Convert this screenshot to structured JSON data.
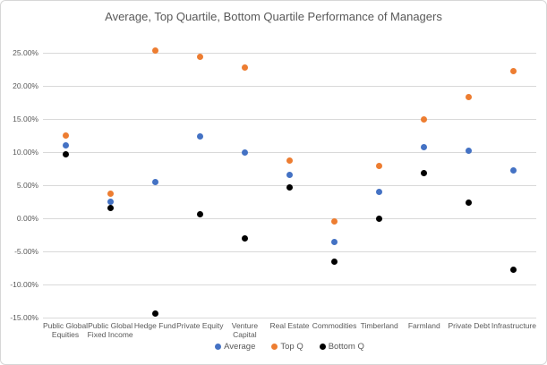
{
  "colors": {
    "text": "#595959",
    "gridline": "#d9d9d9",
    "series_average": "#4472C4",
    "series_top_q": "#ED7D31",
    "series_bottom_q": "#000000"
  },
  "chart_data": {
    "type": "scatter",
    "title": "Average, Top Quartile, Bottom Quartile Performance of Managers",
    "categories": [
      "Public Global Equities",
      "Public Global Fixed Income",
      "Hedge Fund",
      "Private Equity",
      "Venture Capital",
      "Real Estate",
      "Commodities",
      "Timberland",
      "Farmland",
      "Private Debt",
      "Infrastructure"
    ],
    "series": [
      {
        "name": "Average",
        "color": "#4472C4",
        "values": [
          11.0,
          2.4,
          5.4,
          12.3,
          9.8,
          6.5,
          -3.6,
          3.9,
          10.7,
          10.2,
          7.2
        ]
      },
      {
        "name": "Top Q",
        "color": "#ED7D31",
        "values": [
          12.4,
          3.6,
          25.3,
          24.3,
          22.7,
          8.6,
          -0.6,
          7.8,
          14.8,
          18.2,
          22.1
        ]
      },
      {
        "name": "Bottom Q",
        "color": "#000000",
        "values": [
          9.6,
          1.5,
          -14.4,
          0.6,
          -3.1,
          4.6,
          -6.6,
          -0.2,
          6.8,
          2.3,
          -7.8
        ]
      }
    ],
    "xlabel": "",
    "ylabel": "",
    "ylim": [
      -15,
      25
    ],
    "ytick_step": 5,
    "ytick_labels": [
      "25.00%",
      "20.00%",
      "15.00%",
      "10.00%",
      "5.00%",
      "0.00%",
      "-5.00%",
      "-10.00%",
      "-15.00%"
    ],
    "grid": true,
    "legend_position": "bottom"
  }
}
